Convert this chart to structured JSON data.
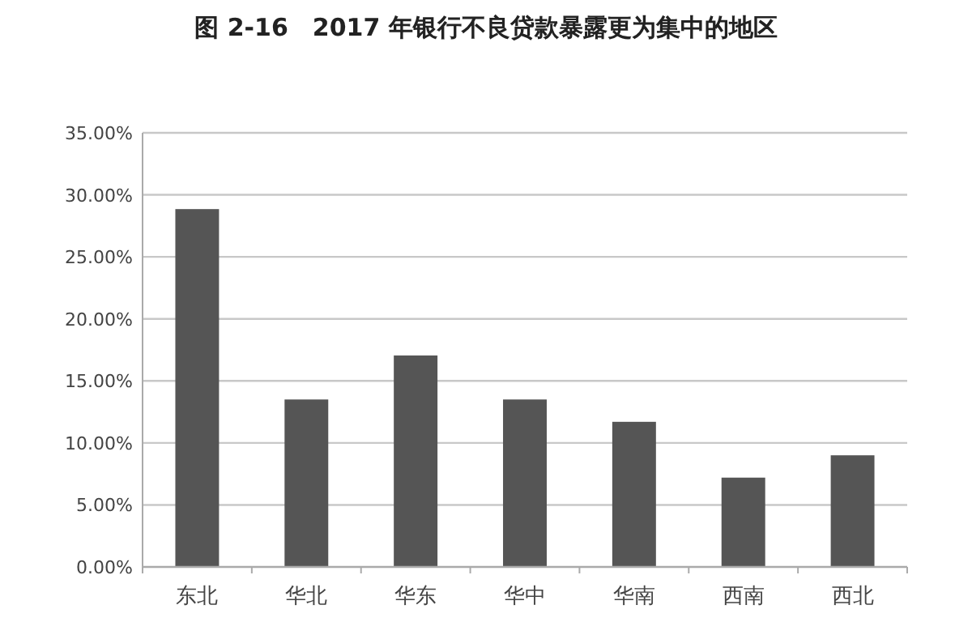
{
  "chart_data": {
    "type": "bar",
    "title": "图 2-16　2017 年银行不良贷款暴露更为集中的地区",
    "categories": [
      "东北",
      "华北",
      "华东",
      "华中",
      "华南",
      "西南",
      "西北"
    ],
    "values": [
      28.85,
      13.5,
      17.05,
      13.5,
      11.7,
      7.2,
      9.0
    ],
    "color": "#555555",
    "ylim": [
      0,
      35
    ],
    "yticks": [
      {
        "value": 0,
        "label": "0.00%"
      },
      {
        "value": 5,
        "label": "5.00%"
      },
      {
        "value": 10,
        "label": "10.00%"
      },
      {
        "value": 15,
        "label": "15.00%"
      },
      {
        "value": 20,
        "label": "20.00%"
      },
      {
        "value": 25,
        "label": "25.00%"
      },
      {
        "value": 30,
        "label": "30.00%"
      },
      {
        "value": 35,
        "label": "35.00%"
      }
    ],
    "grid": "y"
  }
}
